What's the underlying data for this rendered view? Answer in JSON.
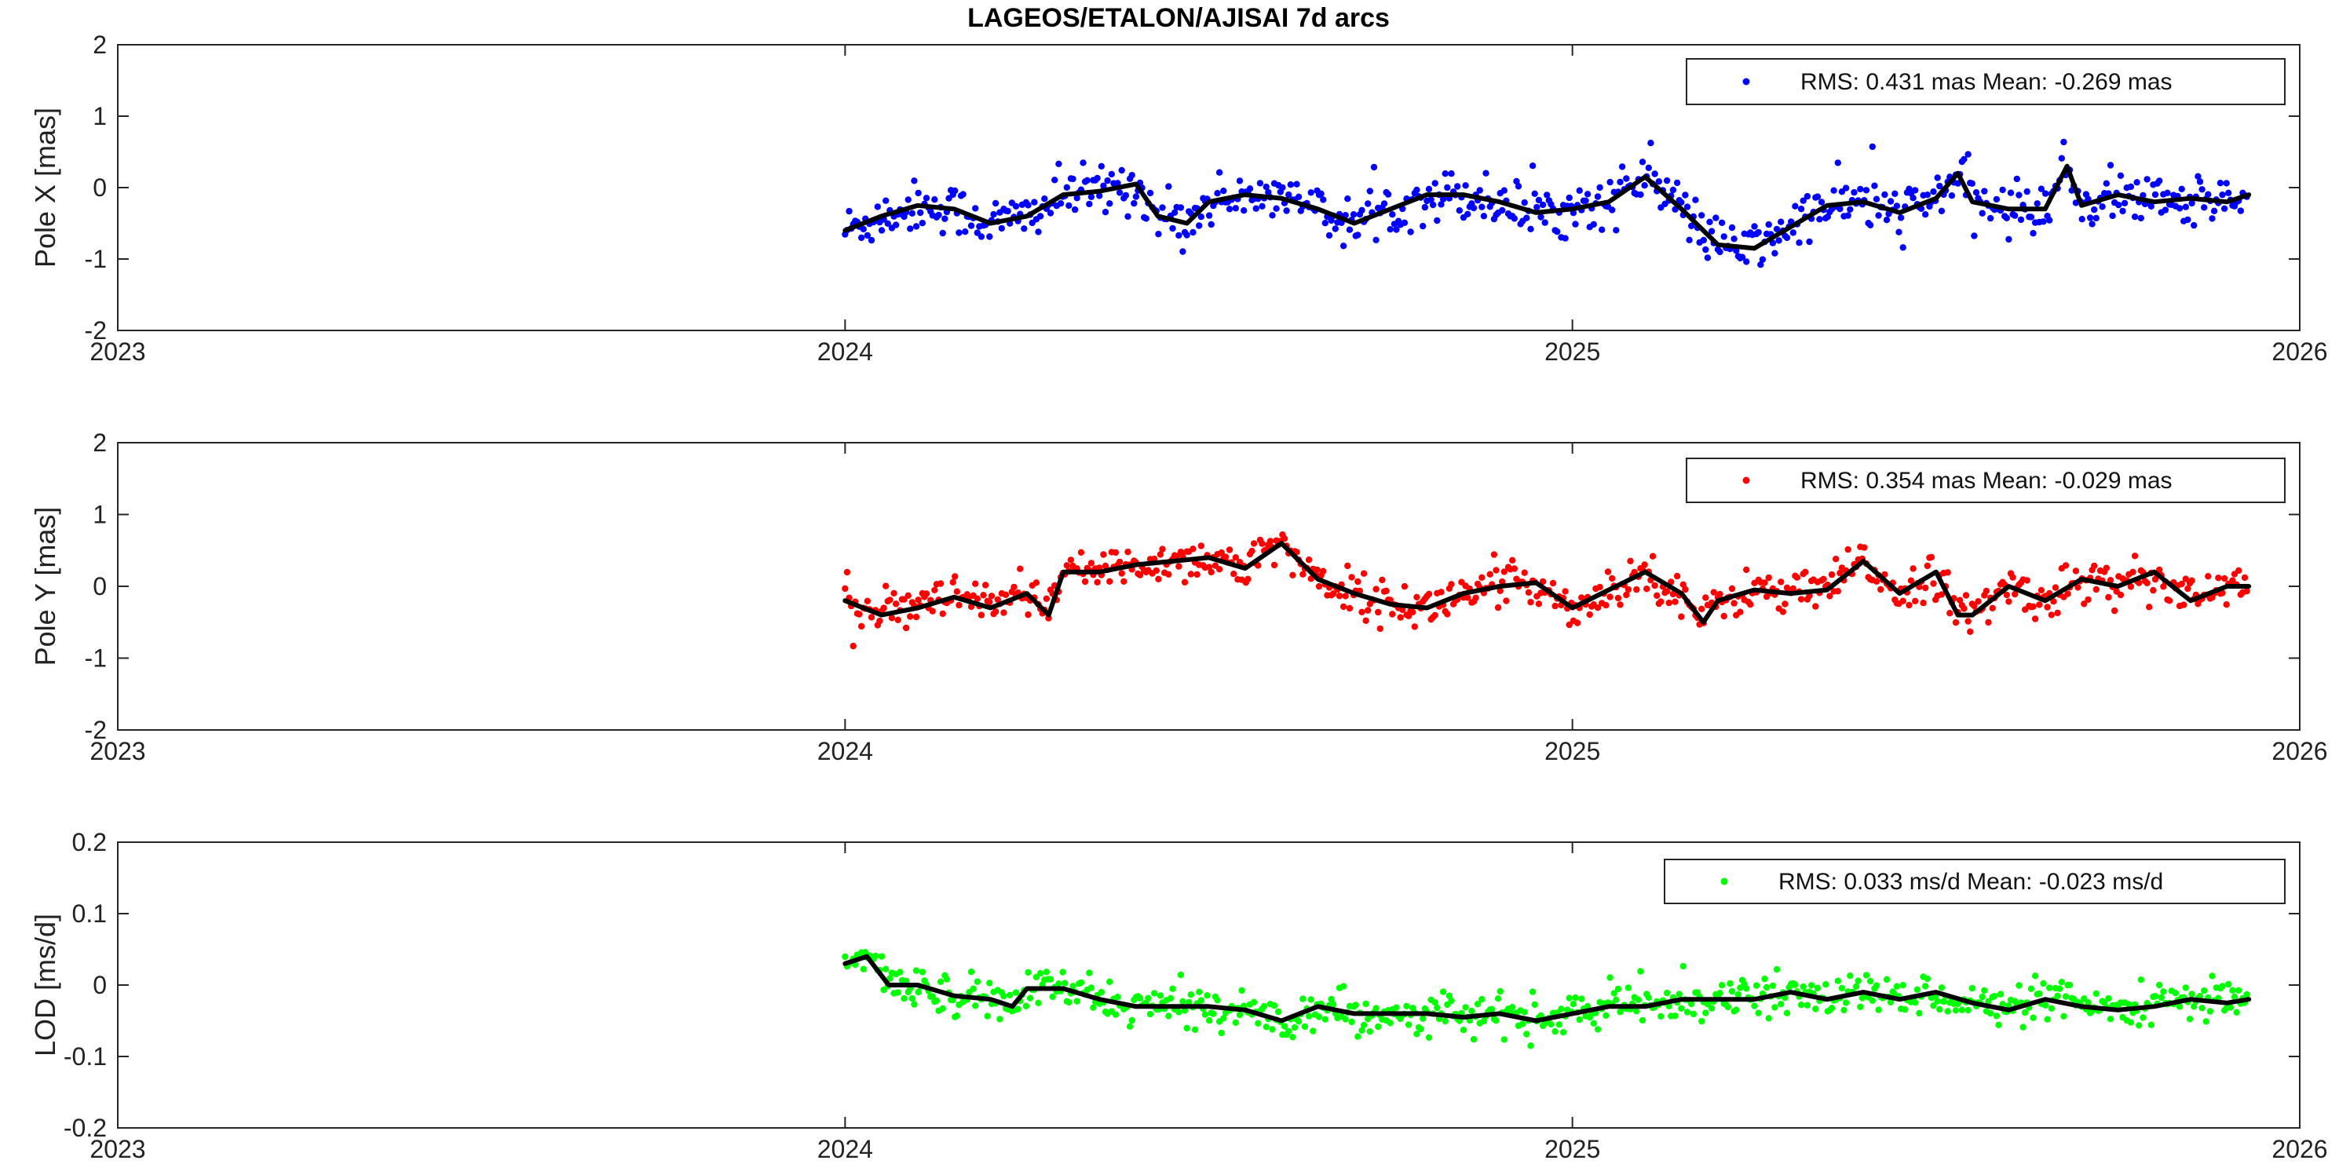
{
  "chart_data": [
    {
      "type": "scatter",
      "title": "LAGEOS/ETALON/AJISAI 7d arcs",
      "ylabel": "Pole X [mas]",
      "xlim": [
        2023,
        2026
      ],
      "ylim": [
        -2,
        2
      ],
      "xticks": [
        "2023",
        "2024",
        "2025",
        "2026"
      ],
      "yticks": [
        "-2",
        "-1",
        "0",
        "1",
        "2"
      ],
      "legend_position": "top-right",
      "legend_text": "RMS: 0.431 mas  Mean: -0.269 mas",
      "point_color": "#0000ff",
      "smooth_color": "#000000",
      "series": [
        {
          "name": "RMS: 0.431 mas  Mean: -0.269 mas",
          "smooth": {
            "x": [
              2024.0,
              2024.05,
              2024.1,
              2024.15,
              2024.2,
              2024.25,
              2024.3,
              2024.35,
              2024.4,
              2024.43,
              2024.47,
              2024.5,
              2024.55,
              2024.6,
              2024.65,
              2024.7,
              2024.75,
              2024.8,
              2024.85,
              2024.9,
              2024.95,
              2025.0,
              2025.05,
              2025.1,
              2025.15,
              2025.2,
              2025.25,
              2025.3,
              2025.35,
              2025.4,
              2025.45,
              2025.5,
              2025.53,
              2025.55,
              2025.6,
              2025.65,
              2025.68,
              2025.7,
              2025.75,
              2025.8,
              2025.85,
              2025.9,
              2025.93
            ],
            "y": [
              -0.6,
              -0.4,
              -0.25,
              -0.3,
              -0.5,
              -0.4,
              -0.1,
              -0.05,
              0.05,
              -0.4,
              -0.5,
              -0.2,
              -0.1,
              -0.15,
              -0.3,
              -0.5,
              -0.3,
              -0.1,
              -0.1,
              -0.2,
              -0.35,
              -0.3,
              -0.2,
              0.15,
              -0.3,
              -0.8,
              -0.85,
              -0.55,
              -0.25,
              -0.2,
              -0.35,
              -0.15,
              0.2,
              -0.2,
              -0.3,
              -0.3,
              0.3,
              -0.25,
              -0.1,
              -0.2,
              -0.15,
              -0.2,
              -0.1
            ]
          },
          "points_mean": -0.269,
          "points_rms": 0.431
        }
      ]
    },
    {
      "type": "scatter",
      "ylabel": "Pole Y [mas]",
      "xlim": [
        2023,
        2026
      ],
      "ylim": [
        -2,
        2
      ],
      "xticks": [
        "2023",
        "2024",
        "2025",
        "2026"
      ],
      "yticks": [
        "-2",
        "-1",
        "0",
        "1",
        "2"
      ],
      "legend_position": "top-right",
      "legend_text": "RMS: 0.354 mas  Mean: -0.029 mas",
      "point_color": "#ff0000",
      "smooth_color": "#000000",
      "series": [
        {
          "name": "RMS: 0.354 mas  Mean: -0.029 mas",
          "smooth": {
            "x": [
              2024.0,
              2024.05,
              2024.1,
              2024.15,
              2024.2,
              2024.25,
              2024.28,
              2024.3,
              2024.35,
              2024.4,
              2024.45,
              2024.5,
              2024.55,
              2024.6,
              2024.65,
              2024.7,
              2024.75,
              2024.8,
              2024.85,
              2024.9,
              2024.95,
              2025.0,
              2025.05,
              2025.1,
              2025.15,
              2025.18,
              2025.2,
              2025.25,
              2025.3,
              2025.35,
              2025.4,
              2025.45,
              2025.5,
              2025.53,
              2025.55,
              2025.6,
              2025.65,
              2025.7,
              2025.75,
              2025.8,
              2025.85,
              2025.9,
              2025.93
            ],
            "y": [
              -0.2,
              -0.4,
              -0.3,
              -0.15,
              -0.3,
              -0.1,
              -0.4,
              0.2,
              0.2,
              0.3,
              0.35,
              0.4,
              0.25,
              0.6,
              0.1,
              -0.1,
              -0.25,
              -0.3,
              -0.1,
              0.0,
              0.05,
              -0.3,
              -0.05,
              0.2,
              -0.1,
              -0.5,
              -0.2,
              -0.05,
              -0.1,
              -0.05,
              0.35,
              -0.1,
              0.2,
              -0.4,
              -0.4,
              0.0,
              -0.2,
              0.1,
              0.0,
              0.2,
              -0.2,
              0.0,
              0.0
            ]
          },
          "points_mean": -0.029,
          "points_rms": 0.354
        }
      ]
    },
    {
      "type": "scatter",
      "ylabel": "LOD [ms/d]",
      "xlim": [
        2023,
        2026
      ],
      "ylim": [
        -0.2,
        0.2
      ],
      "xticks": [
        "2023",
        "2024",
        "2025",
        "2026"
      ],
      "yticks": [
        "-0.2",
        "-0.1",
        "0",
        "0.1",
        "0.2"
      ],
      "legend_position": "top-right",
      "legend_text": "RMS: 0.033 ms/d  Mean: -0.023 ms/d",
      "point_color": "#00ff00",
      "smooth_color": "#000000",
      "series": [
        {
          "name": "RMS: 0.033 ms/d  Mean: -0.023 ms/d",
          "smooth": {
            "x": [
              2024.0,
              2024.03,
              2024.06,
              2024.1,
              2024.15,
              2024.2,
              2024.23,
              2024.25,
              2024.3,
              2024.35,
              2024.4,
              2024.45,
              2024.5,
              2024.55,
              2024.6,
              2024.65,
              2024.7,
              2024.75,
              2024.8,
              2024.85,
              2024.9,
              2024.95,
              2025.0,
              2025.05,
              2025.1,
              2025.15,
              2025.2,
              2025.25,
              2025.3,
              2025.35,
              2025.4,
              2025.45,
              2025.5,
              2025.55,
              2025.6,
              2025.65,
              2025.7,
              2025.75,
              2025.8,
              2025.85,
              2025.9,
              2025.93
            ],
            "y": [
              0.03,
              0.04,
              0.0,
              0.0,
              -0.015,
              -0.02,
              -0.03,
              -0.005,
              -0.005,
              -0.02,
              -0.03,
              -0.03,
              -0.03,
              -0.035,
              -0.05,
              -0.03,
              -0.04,
              -0.04,
              -0.04,
              -0.045,
              -0.04,
              -0.05,
              -0.04,
              -0.03,
              -0.03,
              -0.02,
              -0.02,
              -0.02,
              -0.01,
              -0.02,
              -0.01,
              -0.02,
              -0.01,
              -0.025,
              -0.035,
              -0.02,
              -0.03,
              -0.035,
              -0.03,
              -0.02,
              -0.025,
              -0.02
            ]
          },
          "points_mean": -0.023,
          "points_rms": 0.033
        }
      ]
    }
  ]
}
